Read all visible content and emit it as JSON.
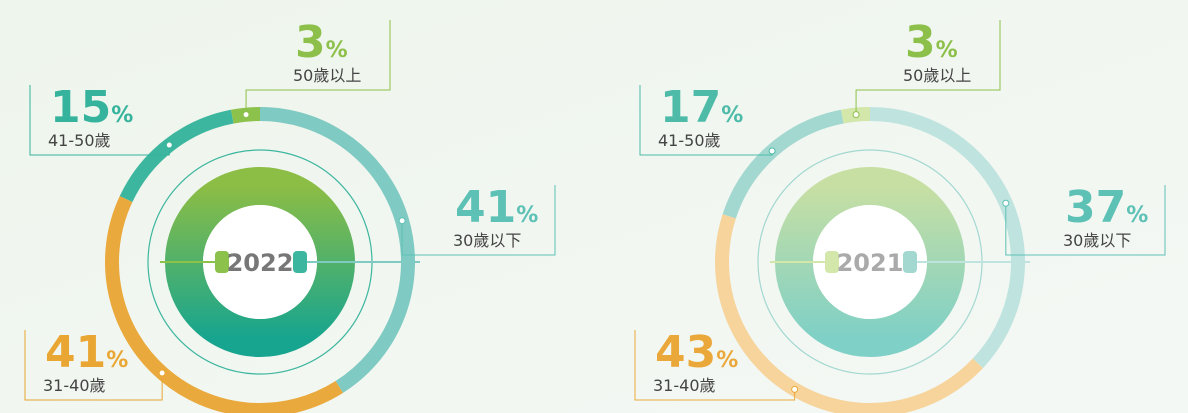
{
  "chart_data": [
    {
      "type": "pie",
      "title": "2022",
      "unit": "%",
      "categories": [
        "30歲以下",
        "31-40歲",
        "41-50歲",
        "50歲以上"
      ],
      "values": [
        41,
        41,
        15,
        3
      ],
      "colors": [
        "#7fcac2",
        "#eaa93c",
        "#3db69f",
        "#8cc14c"
      ],
      "label_colors": [
        "#5dc1b5",
        "#e9a632",
        "#35b39c",
        "#8dc04a"
      ]
    },
    {
      "type": "pie",
      "title": "2021",
      "unit": "%",
      "categories": [
        "30歲以下",
        "31-40歲",
        "41-50歲",
        "50歲以上"
      ],
      "values": [
        37,
        43,
        17,
        3
      ],
      "colors": [
        "#bfe3df",
        "#f6d49c",
        "#a3d8d0",
        "#d2e7a9"
      ],
      "label_colors": [
        "#5dc1b5",
        "#eba83a",
        "#4dbba8",
        "#8dc04a"
      ]
    }
  ]
}
